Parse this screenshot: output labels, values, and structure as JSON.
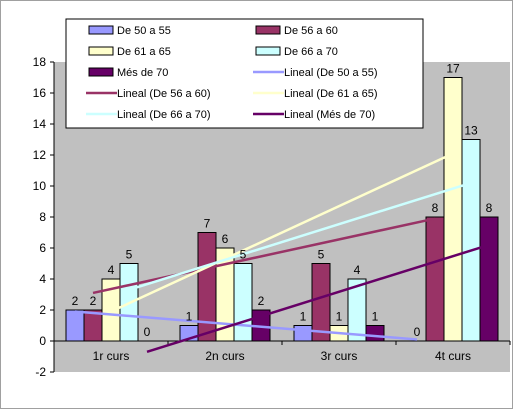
{
  "chart_data": {
    "type": "bar",
    "title": "",
    "xlabel": "",
    "ylabel": "",
    "categories": [
      "1r curs",
      "2n curs",
      "3r curs",
      "4t curs"
    ],
    "ylim": [
      -2,
      18
    ],
    "yticks": [
      "-2",
      "0",
      "2",
      "4",
      "6",
      "8",
      "10",
      "12",
      "14",
      "16",
      "18"
    ],
    "grid": false,
    "legend_position": "top-overlay",
    "plot_background": "#c0c0c0",
    "series": [
      {
        "name": "De 50 a 55",
        "values": [
          2,
          1,
          1,
          0
        ],
        "labels": [
          "2",
          "1",
          "1",
          "0"
        ],
        "color": "#9999ff"
      },
      {
        "name": "De 56 a 60",
        "values": [
          2,
          7,
          5,
          8
        ],
        "labels": [
          "2",
          "7",
          "5",
          "8"
        ],
        "color": "#993366"
      },
      {
        "name": "De 61 a 65",
        "values": [
          4,
          6,
          1,
          17
        ],
        "labels": [
          "4",
          "6",
          "1",
          "17"
        ],
        "color": "#ffffcc"
      },
      {
        "name": "De 66 a 70",
        "values": [
          5,
          5,
          4,
          13
        ],
        "labels": [
          "5",
          "5",
          "4",
          "13"
        ],
        "color": "#ccffff"
      },
      {
        "name": "Més de 70",
        "values": [
          0,
          2,
          1,
          8
        ],
        "labels": [
          "0",
          "2",
          "1",
          "8"
        ],
        "color": "#660066"
      }
    ],
    "trendlines": [
      {
        "name": "Lineal (De 50 a 55)",
        "series": 0,
        "color": "#9999ff"
      },
      {
        "name": "Lineal (De 56 a 60)",
        "series": 1,
        "color": "#993366"
      },
      {
        "name": "Lineal (De 61 a 65)",
        "series": 2,
        "color": "#ffffcc"
      },
      {
        "name": "Lineal (De 66 a 70)",
        "series": 3,
        "color": "#ccffff"
      },
      {
        "name": "Lineal (Més de 70)",
        "series": 4,
        "color": "#660066"
      }
    ],
    "legend_items": [
      {
        "label": "De 50 a 55",
        "kind": "bar",
        "color": "#9999ff"
      },
      {
        "label": "De 56 a 60",
        "kind": "bar",
        "color": "#993366"
      },
      {
        "label": "De 61 a 65",
        "kind": "bar",
        "color": "#ffffcc"
      },
      {
        "label": "De 66 a 70",
        "kind": "bar",
        "color": "#ccffff"
      },
      {
        "label": "Més de 70",
        "kind": "bar",
        "color": "#660066"
      },
      {
        "label": "Lineal (De 50 a 55)",
        "kind": "line",
        "color": "#9999ff"
      },
      {
        "label": "Lineal (De 56 a 60)",
        "kind": "line",
        "color": "#993366"
      },
      {
        "label": "Lineal (De 61 a 65)",
        "kind": "line",
        "color": "#ffffcc"
      },
      {
        "label": "Lineal (De 66 a 70)",
        "kind": "line",
        "color": "#ccffff"
      },
      {
        "label": "Lineal (Més de 70)",
        "kind": "line",
        "color": "#660066"
      }
    ]
  }
}
